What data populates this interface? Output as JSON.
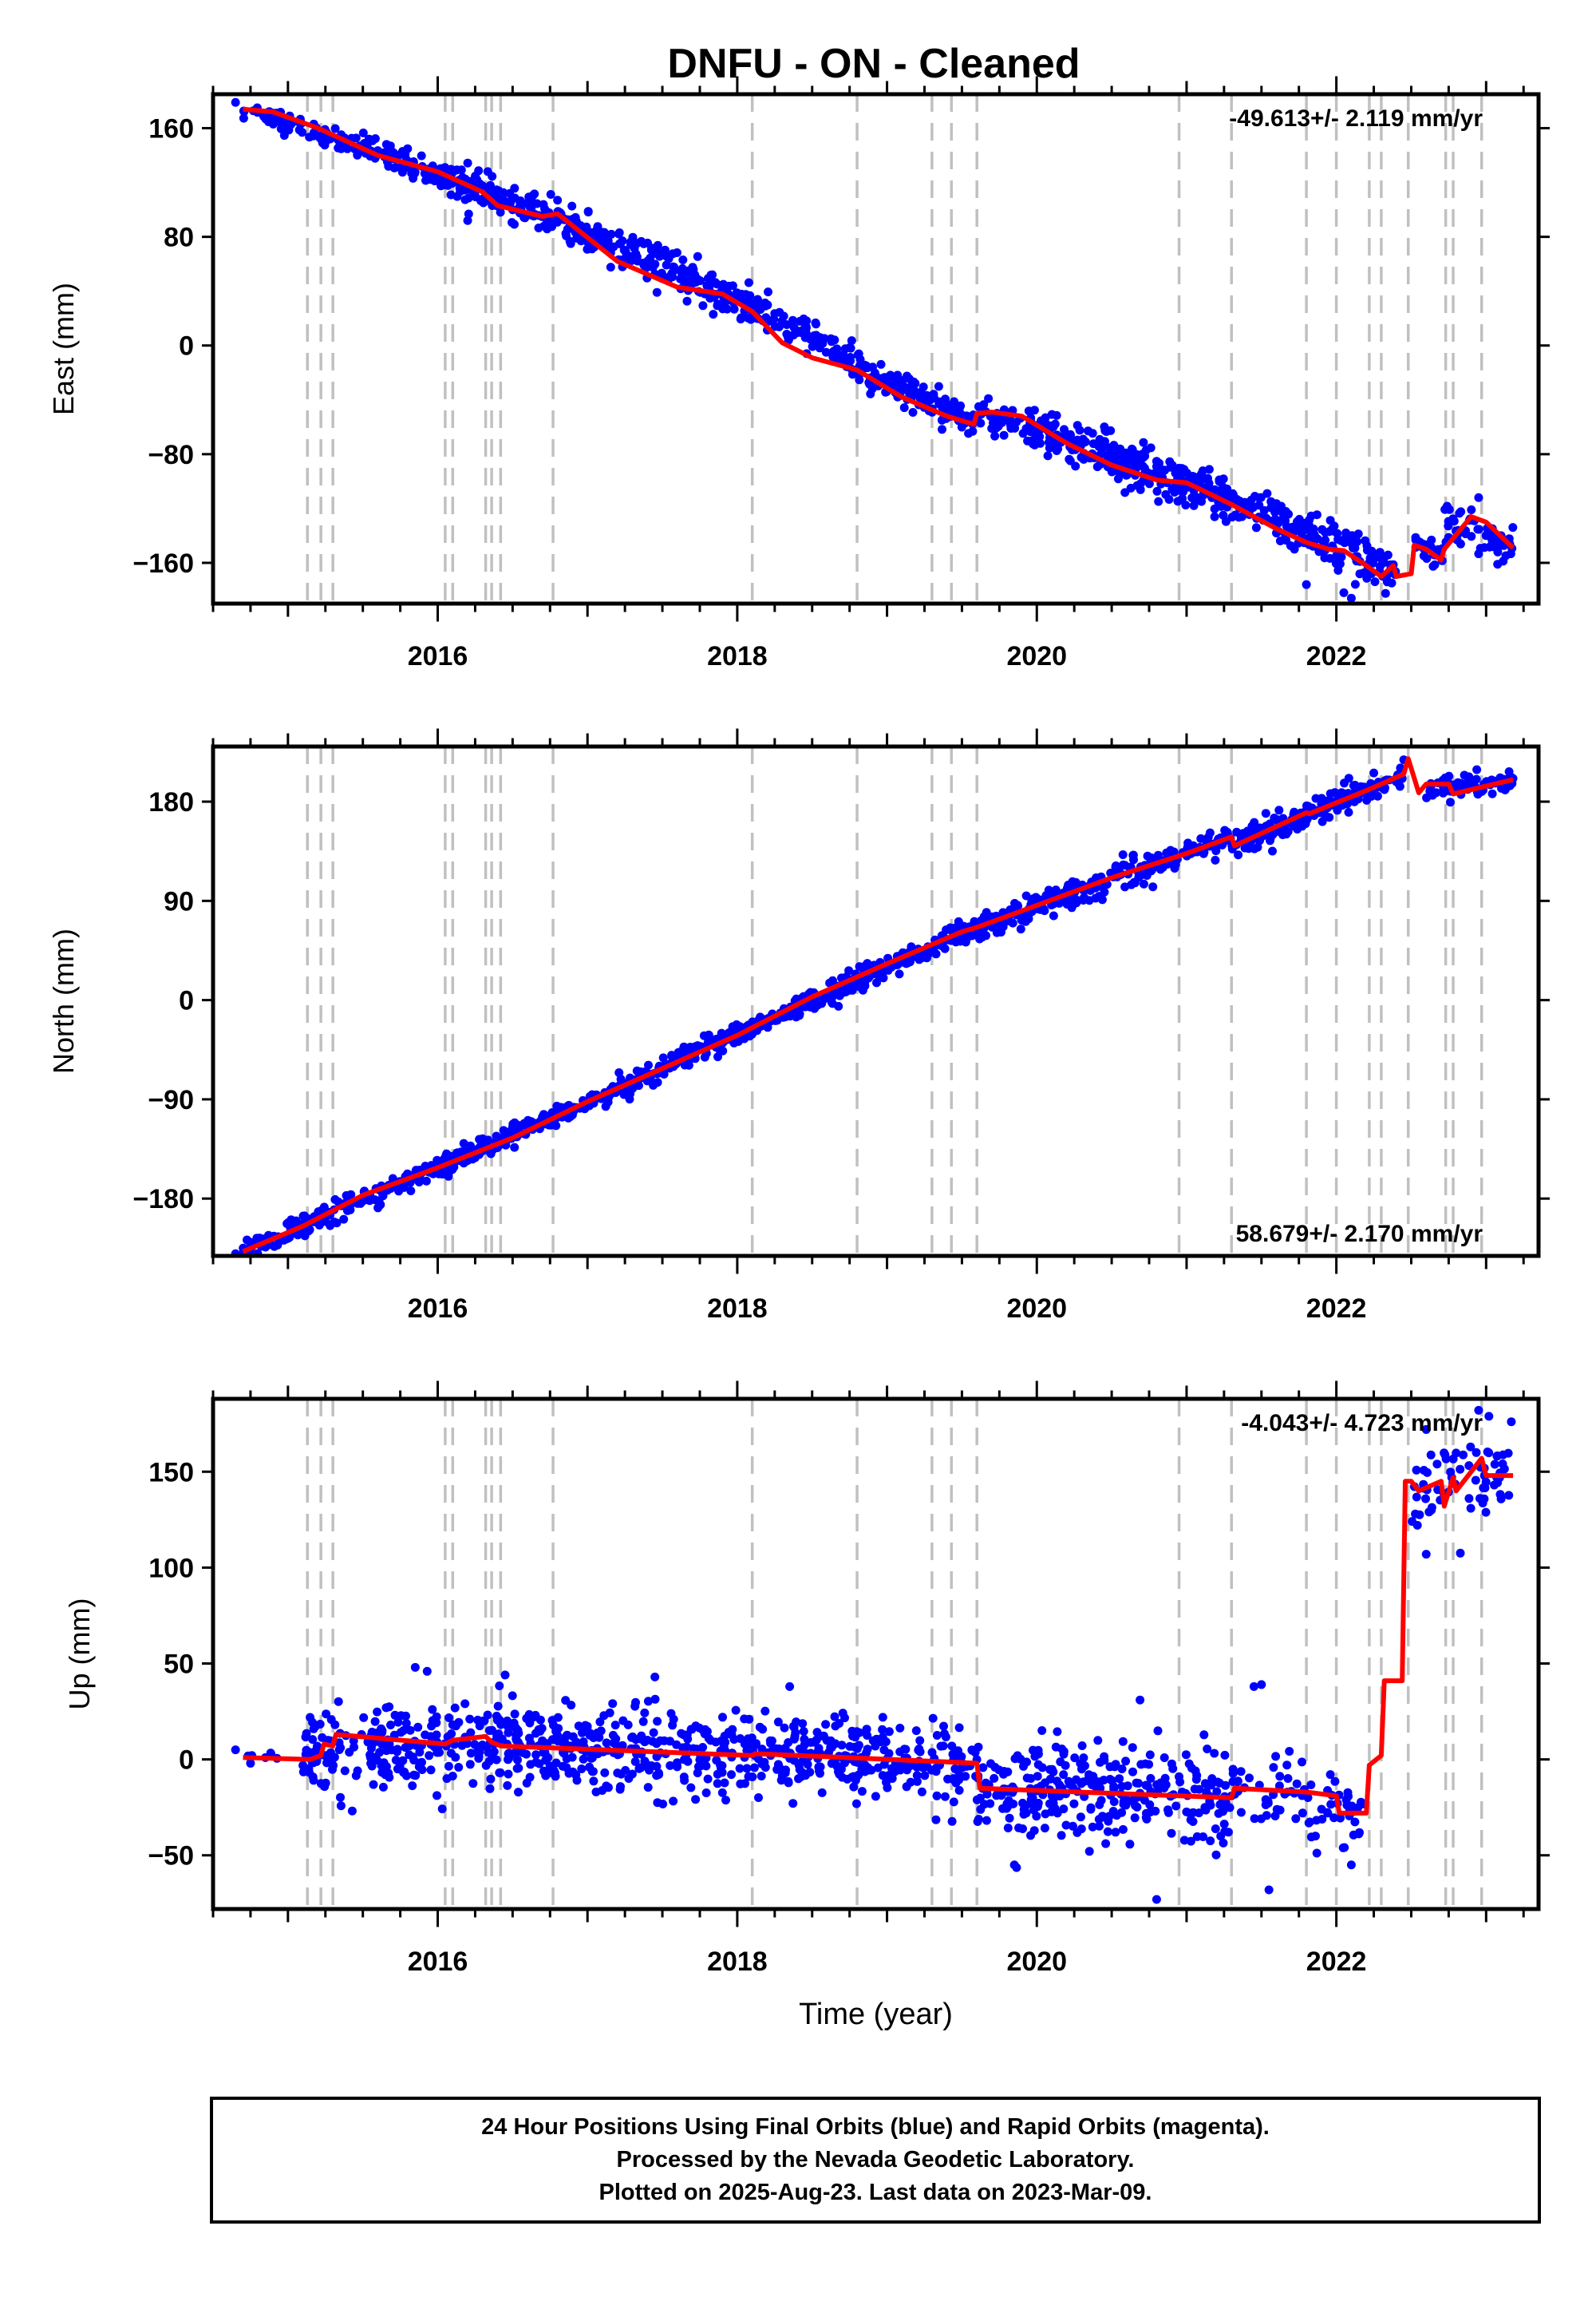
{
  "title": "DNFU  - ON - Cleaned",
  "footer": {
    "lines": [
      "24 Hour Positions Using Final Orbits (blue) and Rapid Orbits (magenta).",
      "Processed by the Nevada Geodetic Laboratory.",
      "Plotted on 2025-Aug-23. Last data on 2023-Mar-09."
    ]
  },
  "colors": {
    "final_orbits": "#0000ff",
    "model": "#ff0000",
    "event_lines": "#c0c0c0",
    "frame": "#000000"
  },
  "chart_data": [
    {
      "type": "scatter",
      "component": "east",
      "ylabel": "East (mm)",
      "xlabel": "",
      "rate_label": "-49.613+/- 2.119 mm/yr",
      "rate_position": "top-right",
      "xlim": [
        2014.5,
        2023.35
      ],
      "ylim": [
        -190,
        185
      ],
      "xticks": [
        2016,
        2018,
        2020,
        2022
      ],
      "yticks": [
        160,
        80,
        0,
        -80,
        -160
      ],
      "ytick_labels": [
        "160",
        "80",
        "0",
        "−80",
        "−160"
      ],
      "grid": false,
      "model_series": {
        "name": "",
        "x": [
          2014.7,
          2014.9,
          2015.05,
          2015.15,
          2015.2,
          2015.3,
          2015.6,
          2016.0,
          2016.3,
          2016.4,
          2016.7,
          2016.8,
          2017.2,
          2017.6,
          2017.9,
          2018.1,
          2018.3,
          2018.5,
          2018.8,
          2019.1,
          2019.4,
          2019.58,
          2019.6,
          2019.7,
          2019.9,
          2020.2,
          2020.5,
          2020.8,
          2021.0,
          2021.3,
          2021.6,
          2021.8,
          2021.95,
          2022.05,
          2022.2,
          2022.25,
          2022.3,
          2022.38,
          2022.4,
          2022.5,
          2022.52,
          2022.6,
          2022.7,
          2022.72,
          2022.9,
          2023.0,
          2023.18
        ],
        "y": [
          174,
          172,
          166,
          162,
          160,
          155,
          140,
          128,
          113,
          103,
          95,
          97,
          62,
          43,
          38,
          25,
          2,
          -9,
          -18,
          -38,
          -52,
          -58,
          -50,
          -49,
          -52,
          -72,
          -88,
          -99,
          -101,
          -117,
          -135,
          -145,
          -150,
          -151,
          -162,
          -166,
          -170,
          -162,
          -170,
          -168,
          -147,
          -150,
          -158,
          -150,
          -126,
          -130,
          -149
        ]
      },
      "observations": {
        "name": "",
        "segments": [
          {
            "x_start": 2014.7,
            "x_end": 2015.5,
            "y_start": 174,
            "y_end": 146,
            "spread": 4,
            "count": 70
          },
          {
            "x_start": 2015.5,
            "x_end": 2016.2,
            "y_start": 146,
            "y_end": 118,
            "spread": 5,
            "count": 110
          },
          {
            "x_start": 2016.2,
            "x_end": 2016.8,
            "y_start": 118,
            "y_end": 92,
            "spread": 6,
            "count": 100
          },
          {
            "x_start": 2016.8,
            "x_end": 2017.9,
            "y_start": 92,
            "y_end": 38,
            "spread": 7,
            "count": 190
          },
          {
            "x_start": 2017.9,
            "x_end": 2019.58,
            "y_start": 38,
            "y_end": -58,
            "spread": 6,
            "count": 280
          },
          {
            "x_start": 2019.6,
            "x_end": 2021.0,
            "y_start": -48,
            "y_end": -101,
            "spread": 8,
            "count": 260
          },
          {
            "x_start": 2021.0,
            "x_end": 2022.4,
            "y_start": -101,
            "y_end": -168,
            "spread": 8,
            "count": 230
          },
          {
            "x_start": 2022.52,
            "x_end": 2022.72,
            "y_start": -148,
            "y_end": -156,
            "spread": 5,
            "count": 25
          },
          {
            "x_start": 2022.72,
            "x_end": 2023.18,
            "y_start": -128,
            "y_end": -149,
            "spread": 7,
            "count": 60
          }
        ],
        "outliers": [
          {
            "x": 2014.65,
            "y": 179
          },
          {
            "x": 2016.8,
            "y": 107
          },
          {
            "x": 2016.2,
            "y": 92
          },
          {
            "x": 2021.8,
            "y": -176
          },
          {
            "x": 2022.05,
            "y": -182
          },
          {
            "x": 2022.1,
            "y": -186
          },
          {
            "x": 2022.6,
            "y": -150
          },
          {
            "x": 2022.95,
            "y": -112
          },
          {
            "x": 2023.1,
            "y": -140
          }
        ]
      },
      "event_lines": [
        2015.13,
        2015.22,
        2015.3,
        2016.05,
        2016.1,
        2016.32,
        2016.36,
        2016.42,
        2016.77,
        2018.1,
        2018.8,
        2019.3,
        2019.43,
        2019.6,
        2020.95,
        2021.3,
        2021.8,
        2022.0,
        2022.22,
        2022.3,
        2022.48,
        2022.73,
        2022.78,
        2022.97
      ]
    },
    {
      "type": "scatter",
      "component": "north",
      "ylabel": "North (mm)",
      "xlabel": "",
      "rate_label": "58.679+/- 2.170 mm/yr",
      "rate_position": "bottom-right",
      "xlim": [
        2014.5,
        2023.35
      ],
      "ylim": [
        -232,
        230
      ],
      "xticks": [
        2016,
        2018,
        2020,
        2022
      ],
      "yticks": [
        180,
        90,
        0,
        -90,
        -180
      ],
      "ytick_labels": [
        "180",
        "90",
        "0",
        "−90",
        "−180"
      ],
      "grid": false,
      "model_series": {
        "name": "",
        "x": [
          2014.7,
          2015.1,
          2015.5,
          2016.0,
          2016.5,
          2017.0,
          2017.5,
          2018.0,
          2018.5,
          2019.0,
          2019.5,
          2019.6,
          2020.0,
          2020.5,
          2021.0,
          2021.3,
          2021.32,
          2021.8,
          2021.82,
          2022.2,
          2022.45,
          2022.48,
          2022.55,
          2022.6,
          2022.75,
          2022.78,
          2023.18
        ],
        "y": [
          -228,
          -205,
          -177,
          -152,
          -125,
          -92,
          -62,
          -32,
          3,
          33,
          62,
          66,
          86,
          111,
          133,
          148,
          140,
          170,
          169,
          190,
          205,
          219,
          188,
          196,
          196,
          187,
          200
        ]
      },
      "observations": {
        "name": "",
        "segments": [
          {
            "x_start": 2014.7,
            "x_end": 2016.0,
            "y_start": -228,
            "y_end": -152,
            "spread": 5,
            "count": 170
          },
          {
            "x_start": 2016.0,
            "x_end": 2018.0,
            "y_start": -152,
            "y_end": -32,
            "spread": 5,
            "count": 320
          },
          {
            "x_start": 2018.0,
            "x_end": 2019.6,
            "y_start": -32,
            "y_end": 66,
            "spread": 5,
            "count": 260
          },
          {
            "x_start": 2019.6,
            "x_end": 2021.3,
            "y_start": 66,
            "y_end": 148,
            "spread": 6,
            "count": 270
          },
          {
            "x_start": 2021.3,
            "x_end": 2022.45,
            "y_start": 140,
            "y_end": 205,
            "spread": 6,
            "count": 200
          },
          {
            "x_start": 2022.6,
            "x_end": 2023.18,
            "y_start": 190,
            "y_end": 200,
            "spread": 5,
            "count": 80
          }
        ],
        "outliers": [
          {
            "x": 2014.65,
            "y": -230
          },
          {
            "x": 2014.85,
            "y": -224
          },
          {
            "x": 2022.45,
            "y": 218
          },
          {
            "x": 2022.25,
            "y": 206
          }
        ]
      },
      "event_lines": [
        2015.13,
        2015.22,
        2015.3,
        2016.05,
        2016.1,
        2016.32,
        2016.36,
        2016.42,
        2016.77,
        2018.1,
        2018.8,
        2019.3,
        2019.43,
        2019.6,
        2020.95,
        2021.3,
        2021.8,
        2022.0,
        2022.22,
        2022.3,
        2022.48,
        2022.73,
        2022.78,
        2022.97
      ]
    },
    {
      "type": "scatter",
      "component": "up",
      "ylabel": "Up (mm)",
      "xlabel": "Time (year)",
      "rate_label": "-4.043+/- 4.723 mm/yr",
      "rate_position": "top-right",
      "xlim": [
        2014.5,
        2023.35
      ],
      "ylim": [
        -78,
        188
      ],
      "xticks": [
        2016,
        2018,
        2020,
        2022
      ],
      "yticks": [
        150,
        100,
        50,
        0,
        -50
      ],
      "ytick_labels": [
        "150",
        "100",
        "50",
        "0",
        "−50"
      ],
      "grid": false,
      "model_series": {
        "name": "",
        "x": [
          2014.7,
          2015.13,
          2015.15,
          2015.22,
          2015.24,
          2015.3,
          2015.32,
          2016.05,
          2016.1,
          2016.32,
          2016.36,
          2016.42,
          2016.77,
          2018.1,
          2018.12,
          2019.6,
          2019.62,
          2020.95,
          2021.3,
          2021.32,
          2021.8,
          2022.0,
          2022.02,
          2022.2,
          2022.22,
          2022.3,
          2022.32,
          2022.44,
          2022.46,
          2022.5,
          2022.55,
          2022.7,
          2022.72,
          2022.78,
          2022.8,
          2022.97,
          2023.0,
          2023.18
        ],
        "y": [
          1,
          0,
          0,
          2,
          8,
          7,
          13,
          8,
          10,
          12,
          9,
          7,
          6,
          2,
          3,
          -2,
          -15,
          -19,
          -20,
          -15,
          -17,
          -19,
          -28,
          -28,
          -3,
          2,
          41,
          41,
          145,
          145,
          140,
          145,
          132,
          147,
          140,
          157,
          148,
          148
        ]
      },
      "observations": {
        "name": "",
        "segments": [
          {
            "x_start": 2014.7,
            "x_end": 2015.1,
            "y_start": 1,
            "y_end": 0,
            "spread": 3,
            "count": 6
          },
          {
            "x_start": 2015.1,
            "x_end": 2016.5,
            "y_start": 2,
            "y_end": 10,
            "spread": 11,
            "count": 240
          },
          {
            "x_start": 2016.5,
            "x_end": 2018.1,
            "y_start": 7,
            "y_end": 2,
            "spread": 11,
            "count": 280
          },
          {
            "x_start": 2018.1,
            "x_end": 2019.6,
            "y_start": 3,
            "y_end": -2,
            "spread": 10,
            "count": 260
          },
          {
            "x_start": 2019.6,
            "x_end": 2021.3,
            "y_start": -15,
            "y_end": -20,
            "spread": 13,
            "count": 300
          },
          {
            "x_start": 2021.3,
            "x_end": 2022.2,
            "y_start": -15,
            "y_end": -28,
            "spread": 10,
            "count": 80
          },
          {
            "x_start": 2022.5,
            "x_end": 2023.18,
            "y_start": 145,
            "y_end": 148,
            "spread": 14,
            "count": 70
          }
        ],
        "outliers": [
          {
            "x": 2014.65,
            "y": 5
          },
          {
            "x": 2014.75,
            "y": -2
          },
          {
            "x": 2015.85,
            "y": 48
          },
          {
            "x": 2016.45,
            "y": 44
          },
          {
            "x": 2017.45,
            "y": 43
          },
          {
            "x": 2018.35,
            "y": 38
          },
          {
            "x": 2019.85,
            "y": -55
          },
          {
            "x": 2020.8,
            "y": -73
          },
          {
            "x": 2021.55,
            "y": -68
          },
          {
            "x": 2021.45,
            "y": 38
          },
          {
            "x": 2021.5,
            "y": 39
          },
          {
            "x": 2022.1,
            "y": -55
          },
          {
            "x": 2022.6,
            "y": 107
          },
          {
            "x": 2022.95,
            "y": 182
          },
          {
            "x": 2022.6,
            "y": 172
          }
        ]
      },
      "event_lines": [
        2015.13,
        2015.22,
        2015.3,
        2016.05,
        2016.1,
        2016.32,
        2016.36,
        2016.42,
        2016.77,
        2018.1,
        2018.8,
        2019.3,
        2019.43,
        2019.6,
        2020.95,
        2021.3,
        2021.8,
        2022.0,
        2022.22,
        2022.3,
        2022.48,
        2022.73,
        2022.78,
        2022.97
      ]
    }
  ]
}
